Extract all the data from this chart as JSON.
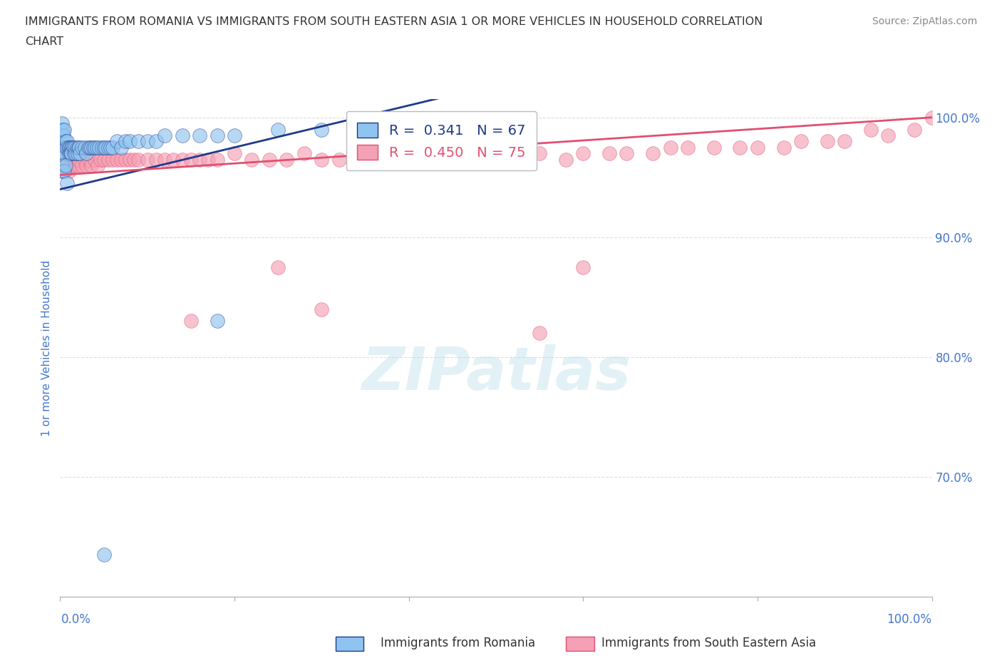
{
  "title_line1": "IMMIGRANTS FROM ROMANIA VS IMMIGRANTS FROM SOUTH EASTERN ASIA 1 OR MORE VEHICLES IN HOUSEHOLD CORRELATION",
  "title_line2": "CHART",
  "source_text": "Source: ZipAtlas.com",
  "xlabel_left": "Immigrants from Romania",
  "xlabel_right": "Immigrants from South Eastern Asia",
  "ylabel": "1 or more Vehicles in Household",
  "xlim": [
    0.0,
    1.0
  ],
  "ylim": [
    0.6,
    1.015
  ],
  "romania_color": "#90C4F0",
  "sea_color": "#F4A0B5",
  "romania_line_color": "#1E3A8A",
  "sea_line_color": "#E05070",
  "R_romania": 0.341,
  "N_romania": 67,
  "R_sea": 0.45,
  "N_sea": 75,
  "romania_scatter_x": [
    0.002,
    0.003,
    0.004,
    0.003,
    0.004,
    0.005,
    0.006,
    0.006,
    0.005,
    0.007,
    0.008,
    0.009,
    0.01,
    0.01,
    0.011,
    0.012,
    0.013,
    0.014,
    0.012,
    0.013,
    0.015,
    0.016,
    0.017,
    0.018,
    0.019,
    0.02,
    0.021,
    0.022,
    0.023,
    0.025,
    0.028,
    0.03,
    0.032,
    0.034,
    0.036,
    0.038,
    0.04,
    0.042,
    0.045,
    0.048,
    0.05,
    0.052,
    0.055,
    0.058,
    0.06,
    0.065,
    0.07,
    0.075,
    0.08,
    0.09,
    0.1,
    0.11,
    0.12,
    0.14,
    0.16,
    0.18,
    0.2,
    0.25,
    0.3,
    0.35,
    0.002,
    0.003,
    0.005,
    0.006,
    0.008,
    0.05,
    0.18
  ],
  "romania_scatter_y": [
    0.995,
    0.99,
    0.985,
    0.975,
    0.97,
    0.99,
    0.98,
    0.975,
    0.97,
    0.975,
    0.98,
    0.975,
    0.975,
    0.97,
    0.975,
    0.97,
    0.975,
    0.975,
    0.97,
    0.97,
    0.975,
    0.97,
    0.975,
    0.97,
    0.975,
    0.97,
    0.975,
    0.975,
    0.97,
    0.975,
    0.975,
    0.97,
    0.975,
    0.975,
    0.975,
    0.975,
    0.975,
    0.975,
    0.975,
    0.975,
    0.975,
    0.975,
    0.975,
    0.975,
    0.975,
    0.98,
    0.975,
    0.98,
    0.98,
    0.98,
    0.98,
    0.98,
    0.985,
    0.985,
    0.985,
    0.985,
    0.985,
    0.99,
    0.99,
    0.995,
    0.96,
    0.955,
    0.955,
    0.96,
    0.945,
    0.635,
    0.83
  ],
  "sea_scatter_x": [
    0.002,
    0.003,
    0.008,
    0.01,
    0.012,
    0.015,
    0.018,
    0.02,
    0.022,
    0.025,
    0.028,
    0.03,
    0.033,
    0.036,
    0.04,
    0.043,
    0.046,
    0.05,
    0.055,
    0.06,
    0.065,
    0.07,
    0.075,
    0.08,
    0.085,
    0.09,
    0.1,
    0.11,
    0.12,
    0.13,
    0.14,
    0.15,
    0.16,
    0.17,
    0.18,
    0.2,
    0.22,
    0.24,
    0.26,
    0.28,
    0.3,
    0.32,
    0.34,
    0.36,
    0.38,
    0.4,
    0.42,
    0.45,
    0.48,
    0.5,
    0.53,
    0.55,
    0.58,
    0.6,
    0.63,
    0.65,
    0.68,
    0.7,
    0.72,
    0.75,
    0.78,
    0.8,
    0.83,
    0.85,
    0.88,
    0.9,
    0.93,
    0.95,
    0.98,
    1.0,
    0.25,
    0.15,
    0.3,
    0.55,
    0.6
  ],
  "sea_scatter_y": [
    0.955,
    0.96,
    0.965,
    0.955,
    0.96,
    0.96,
    0.965,
    0.96,
    0.965,
    0.96,
    0.965,
    0.96,
    0.965,
    0.96,
    0.965,
    0.96,
    0.965,
    0.965,
    0.965,
    0.965,
    0.965,
    0.965,
    0.965,
    0.965,
    0.965,
    0.965,
    0.965,
    0.965,
    0.965,
    0.965,
    0.965,
    0.965,
    0.965,
    0.965,
    0.965,
    0.97,
    0.965,
    0.965,
    0.965,
    0.97,
    0.965,
    0.965,
    0.965,
    0.965,
    0.965,
    0.965,
    0.965,
    0.97,
    0.965,
    0.97,
    0.965,
    0.97,
    0.965,
    0.97,
    0.97,
    0.97,
    0.97,
    0.975,
    0.975,
    0.975,
    0.975,
    0.975,
    0.975,
    0.98,
    0.98,
    0.98,
    0.99,
    0.985,
    0.99,
    1.0,
    0.875,
    0.83,
    0.84,
    0.82,
    0.875
  ],
  "watermark_text": "ZIPatlas",
  "grid_color": "#DDDDDD",
  "bg_color": "#FFFFFF",
  "title_color": "#333333",
  "axis_label_color": "#4477CC",
  "tick_label_color": "#4477CC"
}
